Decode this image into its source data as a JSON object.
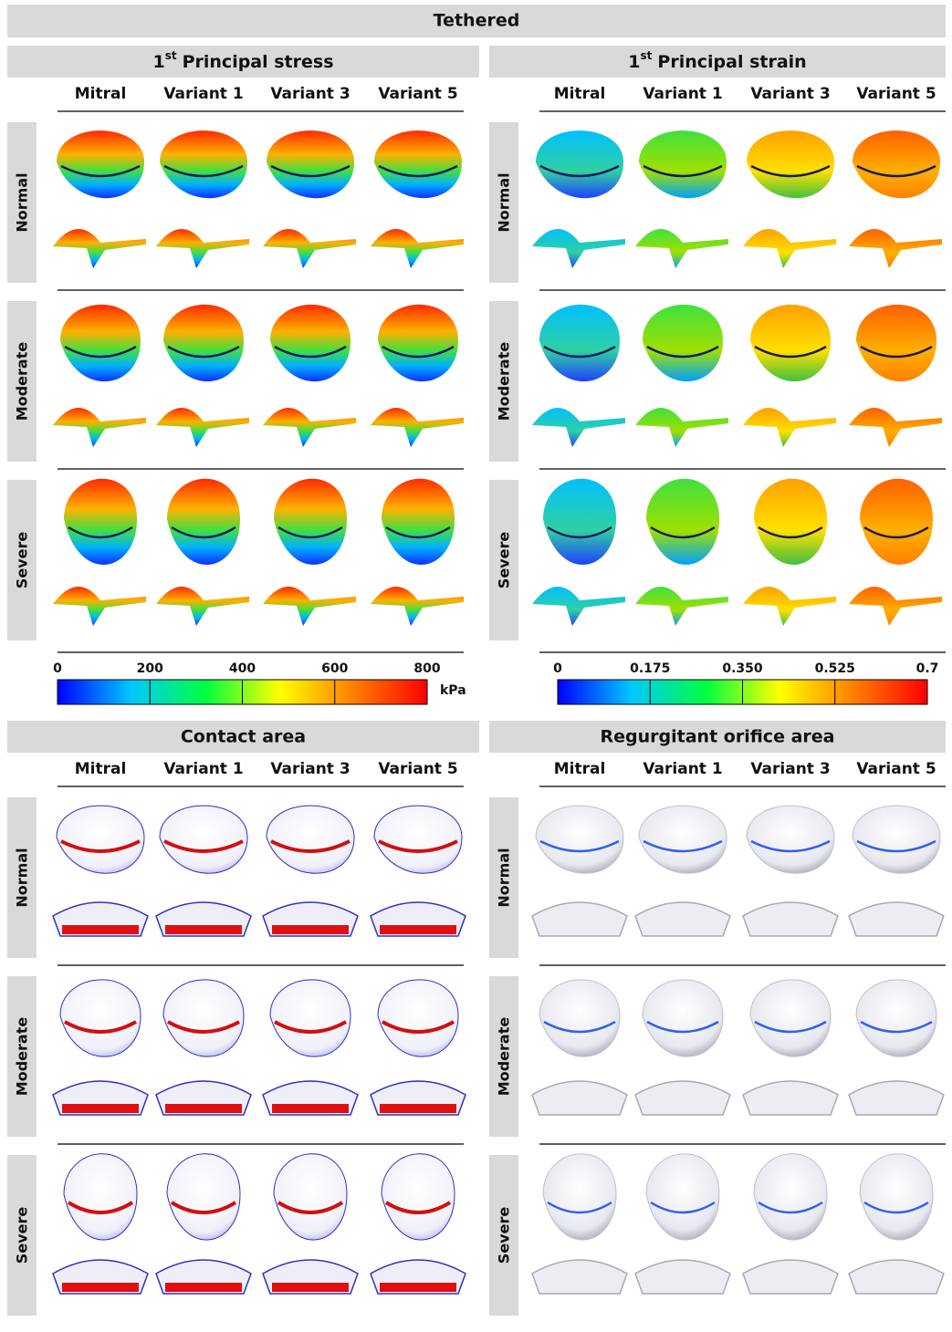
{
  "title": "Tethered",
  "panels": [
    {
      "title_prefix": "1",
      "title_sup": "st",
      "title": "Principal stress",
      "columns": [
        "Mitral",
        "Variant 1",
        "Variant 3",
        "Variant 5"
      ],
      "rows": [
        "Normal",
        "Moderate",
        "Severe"
      ],
      "colorbar": {
        "lim": [
          0,
          800
        ],
        "ticks": [
          0,
          200,
          400,
          600,
          800
        ],
        "unit": "kPa",
        "colors": [
          "#0000ff",
          "#00c8ff",
          "#00ff40",
          "#ffff00",
          "#ff8000",
          "#ff0000"
        ]
      }
    },
    {
      "title_prefix": "1",
      "title_sup": "st",
      "title": "Principal strain",
      "columns": [
        "Mitral",
        "Variant 1",
        "Variant 3",
        "Variant 5"
      ],
      "rows": [
        "Normal",
        "Moderate",
        "Severe"
      ],
      "colorbar": {
        "lim": [
          0,
          0.7
        ],
        "ticks": [
          0,
          0.175,
          {
            "value": 0.35,
            "label": "0.350"
          },
          0.525,
          0.7
        ],
        "colors": [
          "#0000ff",
          "#00c8ff",
          "#00ff40",
          "#ffff00",
          "#ff8000",
          "#ff0000"
        ]
      }
    },
    {
      "title": "Contact area",
      "columns": [
        "Mitral",
        "Variant 1",
        "Variant 3",
        "Variant 5"
      ],
      "rows": [
        "Normal",
        "Moderate",
        "Severe"
      ]
    },
    {
      "title": "Regurgitant orifice area",
      "columns": [
        "Mitral",
        "Variant 1",
        "Variant 3",
        "Variant 5"
      ],
      "rows": [
        "Normal",
        "Moderate",
        "Severe"
      ]
    }
  ]
}
